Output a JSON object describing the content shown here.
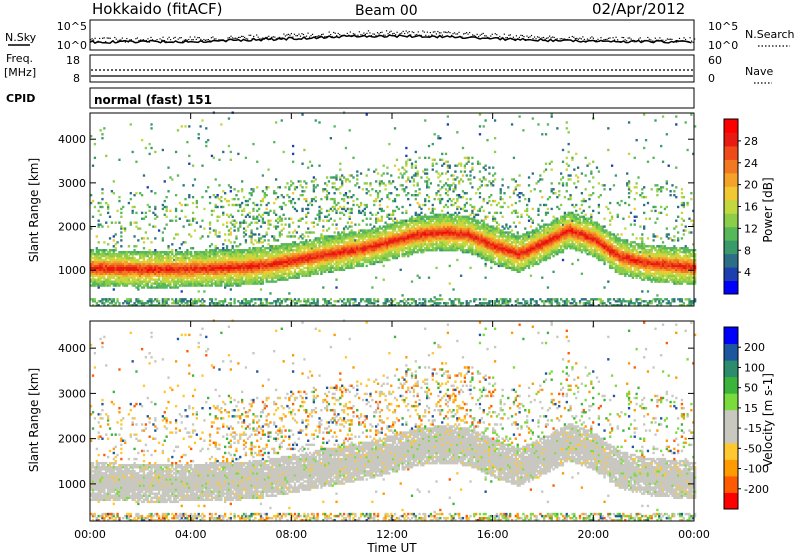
{
  "header": {
    "station": "Hokkaido (fitACF)",
    "beam": "Beam 00",
    "date": "02/Apr/2012"
  },
  "noise_panel": {
    "left_label": "N.Sky",
    "right_label": "N.Search",
    "right_ticks": [
      "10^5",
      "10^0"
    ],
    "left_ticks": [
      "10^5",
      "10^0"
    ]
  },
  "freq_panel": {
    "left_label_1": "Freq.",
    "left_label_2": "[MHz]",
    "left_ticks": [
      "18",
      "8"
    ],
    "right_label": "Nave",
    "right_ticks": [
      "60",
      "0"
    ]
  },
  "cpid_panel": {
    "label": "CPID",
    "text": "normal (fast) 151"
  },
  "colors": {
    "power_scale": [
      "#0000ff",
      "#1e3fb0",
      "#2c6e86",
      "#3a9a6a",
      "#57b85a",
      "#8ccd4a",
      "#c3d83f",
      "#f2c832",
      "#f4a22a",
      "#f27822",
      "#ee4a1a",
      "#e81a12",
      "#ff0000"
    ],
    "velocity_scale": [
      "#ff0000",
      "#ff5a00",
      "#ff9a00",
      "#ffc830",
      "#c8c8c0",
      "#c8c8c0",
      "#7adc3c",
      "#3cb43c",
      "#2c8c6c",
      "#1e56a0",
      "#0000ff"
    ]
  },
  "chart_data": [
    {
      "type": "heatmap",
      "name_label": "Power [dB]",
      "ylabel": "Slant Range [km]",
      "xlabel": "Time UT",
      "x_ticks": [
        "00:00",
        "04:00",
        "08:00",
        "12:00",
        "16:00",
        "20:00",
        "00:00"
      ],
      "x_range_hours": [
        0,
        24
      ],
      "y_range_km": [
        180,
        4600
      ],
      "y_ticks": [
        1000,
        2000,
        3000,
        4000
      ],
      "colorbar_ticks": [
        "28",
        "24",
        "20",
        "16",
        "12",
        "8",
        "4"
      ],
      "colorbar_range": [
        0,
        32
      ],
      "band_center_km": [
        [
          0,
          1030
        ],
        [
          1,
          1020
        ],
        [
          2,
          1000
        ],
        [
          3,
          1000
        ],
        [
          4,
          1010
        ],
        [
          5,
          1030
        ],
        [
          6,
          1050
        ],
        [
          7,
          1100
        ],
        [
          8,
          1200
        ],
        [
          9,
          1300
        ],
        [
          10,
          1400
        ],
        [
          11,
          1500
        ],
        [
          12,
          1650
        ],
        [
          13,
          1800
        ],
        [
          14,
          1850
        ],
        [
          15,
          1800
        ],
        [
          16,
          1550
        ],
        [
          17,
          1350
        ],
        [
          18,
          1600
        ],
        [
          19,
          1900
        ],
        [
          20,
          1700
        ],
        [
          21,
          1300
        ],
        [
          22,
          1150
        ],
        [
          23,
          1100
        ],
        [
          24,
          1050
        ]
      ]
    },
    {
      "type": "heatmap",
      "name_label": "Velocity [m s-1]",
      "ylabel": "Slant Range [km]",
      "xlabel": "Time UT",
      "x_ticks": [
        "00:00",
        "04:00",
        "08:00",
        "12:00",
        "16:00",
        "20:00",
        "00:00"
      ],
      "x_range_hours": [
        0,
        24
      ],
      "y_range_km": [
        180,
        4600
      ],
      "y_ticks": [
        1000,
        2000,
        3000,
        4000
      ],
      "colorbar_ticks": [
        "200",
        "100",
        "50",
        "15",
        "-15",
        "-50",
        "-100",
        "-200"
      ]
    }
  ]
}
